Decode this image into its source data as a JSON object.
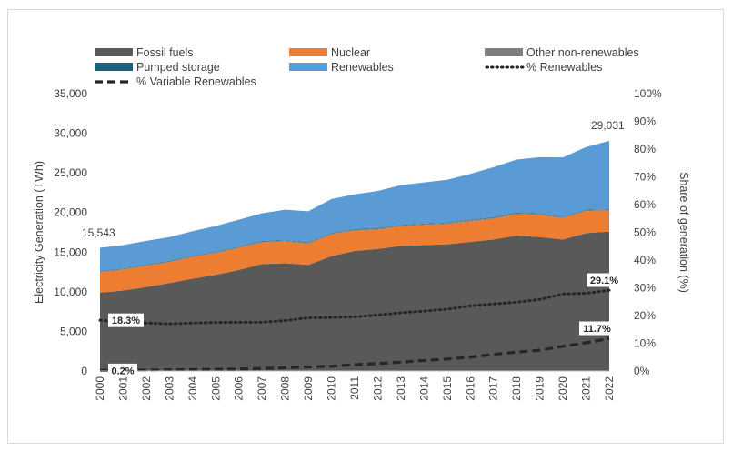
{
  "chart_data": {
    "type": "area",
    "x": [
      "2000",
      "2001",
      "2002",
      "2003",
      "2004",
      "2005",
      "2006",
      "2007",
      "2008",
      "2009",
      "2010",
      "2011",
      "2012",
      "2013",
      "2014",
      "2015",
      "2016",
      "2017",
      "2018",
      "2019",
      "2020",
      "2021",
      "2022"
    ],
    "ylabel": "Electricity Generation (TWh)",
    "y2label": "Share of generation (%)",
    "ylim": [
      0,
      35000
    ],
    "yticks": [
      "0",
      "5,000",
      "10,000",
      "15,000",
      "20,000",
      "25,000",
      "30,000",
      "35,000"
    ],
    "y2lim": [
      0,
      100
    ],
    "y2ticks": [
      "0%",
      "10%",
      "20%",
      "30%",
      "40%",
      "50%",
      "60%",
      "70%",
      "80%",
      "90%",
      "100%"
    ],
    "legend_position": "top",
    "stacked_series": [
      {
        "name": "Fossil fuels",
        "color": "#595959",
        "values": [
          9900,
          10150,
          10600,
          11100,
          11650,
          12150,
          12750,
          13500,
          13600,
          13400,
          14500,
          15150,
          15400,
          15800,
          15900,
          16000,
          16300,
          16600,
          17100,
          16900,
          16600,
          17400,
          17600
        ]
      },
      {
        "name": "Nuclear",
        "color": "#ed7d31",
        "values": [
          2580,
          2650,
          2680,
          2650,
          2750,
          2760,
          2790,
          2750,
          2740,
          2700,
          2750,
          2580,
          2460,
          2480,
          2530,
          2560,
          2600,
          2640,
          2700,
          2800,
          2680,
          2780,
          2650
        ]
      },
      {
        "name": "Other non-renewables",
        "color": "#7f7f7f",
        "values": [
          80,
          80,
          85,
          85,
          90,
          90,
          95,
          95,
          100,
          100,
          100,
          105,
          105,
          110,
          110,
          110,
          115,
          115,
          115,
          120,
          115,
          120,
          120
        ]
      },
      {
        "name": "Pumped storage",
        "color": "#1f5f7a",
        "values": [
          60,
          60,
          60,
          60,
          60,
          60,
          60,
          60,
          60,
          60,
          60,
          60,
          60,
          60,
          60,
          60,
          60,
          60,
          60,
          60,
          60,
          60,
          60
        ]
      },
      {
        "name": "Renewables",
        "color": "#5b9bd5",
        "values": [
          2923,
          2960,
          3000,
          3000,
          3100,
          3250,
          3400,
          3500,
          3850,
          3900,
          4300,
          4400,
          4700,
          5000,
          5200,
          5400,
          5800,
          6300,
          6700,
          7100,
          7500,
          7900,
          8601
        ]
      }
    ],
    "share_series": [
      {
        "name": "% Renewables",
        "style": "dotted",
        "values": [
          18.3,
          17.6,
          17.3,
          17.0,
          17.3,
          17.5,
          17.6,
          17.6,
          18.2,
          19.2,
          19.3,
          19.5,
          20.2,
          21.0,
          21.6,
          22.3,
          23.5,
          24.2,
          24.8,
          25.8,
          27.8,
          28.0,
          29.1
        ]
      },
      {
        "name": "% Variable Renewables",
        "style": "dashed",
        "values": [
          0.2,
          0.3,
          0.3,
          0.4,
          0.5,
          0.6,
          0.7,
          0.9,
          1.2,
          1.5,
          1.7,
          2.3,
          2.7,
          3.2,
          3.8,
          4.3,
          5.0,
          6.0,
          6.8,
          7.5,
          8.9,
          10.2,
          11.7
        ]
      }
    ],
    "annotations": {
      "total_start": "15,543",
      "total_end": "29,031",
      "ren_start": "18.3%",
      "ren_end": "29.1%",
      "var_start": "0.2%",
      "var_end": "11.7%"
    }
  }
}
